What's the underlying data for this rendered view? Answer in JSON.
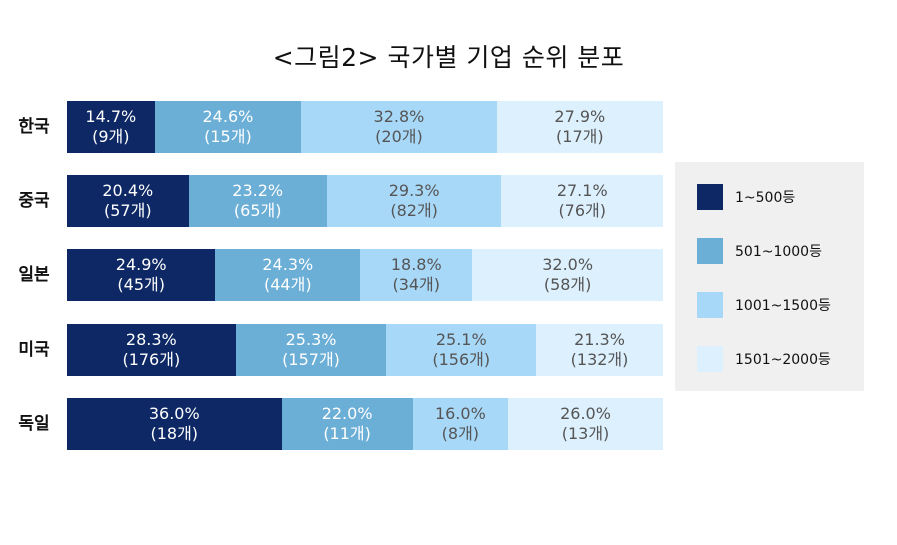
{
  "chart_data": {
    "type": "bar",
    "orientation": "horizontal",
    "stacked": true,
    "normalized": true,
    "title": "<그림2> 국가별 기업 순위 분포",
    "xlabel": "",
    "ylabel": "",
    "xlim": [
      0,
      100
    ],
    "grid": false,
    "legend_position": "right",
    "categories": [
      "한국",
      "중국",
      "일본",
      "미국",
      "독일"
    ],
    "series": [
      {
        "name": "1~500등",
        "color": "#0d2864",
        "text_color": "#ffffff",
        "values": [
          14.7,
          20.4,
          24.9,
          28.3,
          36.0
        ],
        "pct_labels": [
          "14.7%",
          "20.4%",
          "24.9%",
          "28.3%",
          "36.0%"
        ],
        "count_labels": [
          "(9개)",
          "(57개)",
          "(45개)",
          "(176개)",
          "(18개)"
        ]
      },
      {
        "name": "501~1000등",
        "color": "#6baed6",
        "text_color": "#ffffff",
        "values": [
          24.6,
          23.2,
          24.3,
          25.3,
          22.0
        ],
        "pct_labels": [
          "24.6%",
          "23.2%",
          "24.3%",
          "25.3%",
          "22.0%"
        ],
        "count_labels": [
          "(15개)",
          "(65개)",
          "(44개)",
          "(157개)",
          "(11개)"
        ]
      },
      {
        "name": "1001~1500등",
        "color": "#a8d8f8",
        "text_color": "#555555",
        "values": [
          32.8,
          29.3,
          18.8,
          25.1,
          16.0
        ],
        "pct_labels": [
          "32.8%",
          "29.3%",
          "18.8%",
          "25.1%",
          "16.0%"
        ],
        "count_labels": [
          "(20개)",
          "(82개)",
          "(34개)",
          "(156개)",
          "(8개)"
        ]
      },
      {
        "name": "1501~2000등",
        "color": "#ddf0fd",
        "text_color": "#555555",
        "values": [
          27.9,
          27.1,
          32.0,
          21.3,
          26.0
        ],
        "pct_labels": [
          "27.9%",
          "27.1%",
          "32.0%",
          "21.3%",
          "26.0%"
        ],
        "count_labels": [
          "(17개)",
          "(76개)",
          "(58개)",
          "(132개)",
          "(13개)"
        ]
      }
    ]
  }
}
